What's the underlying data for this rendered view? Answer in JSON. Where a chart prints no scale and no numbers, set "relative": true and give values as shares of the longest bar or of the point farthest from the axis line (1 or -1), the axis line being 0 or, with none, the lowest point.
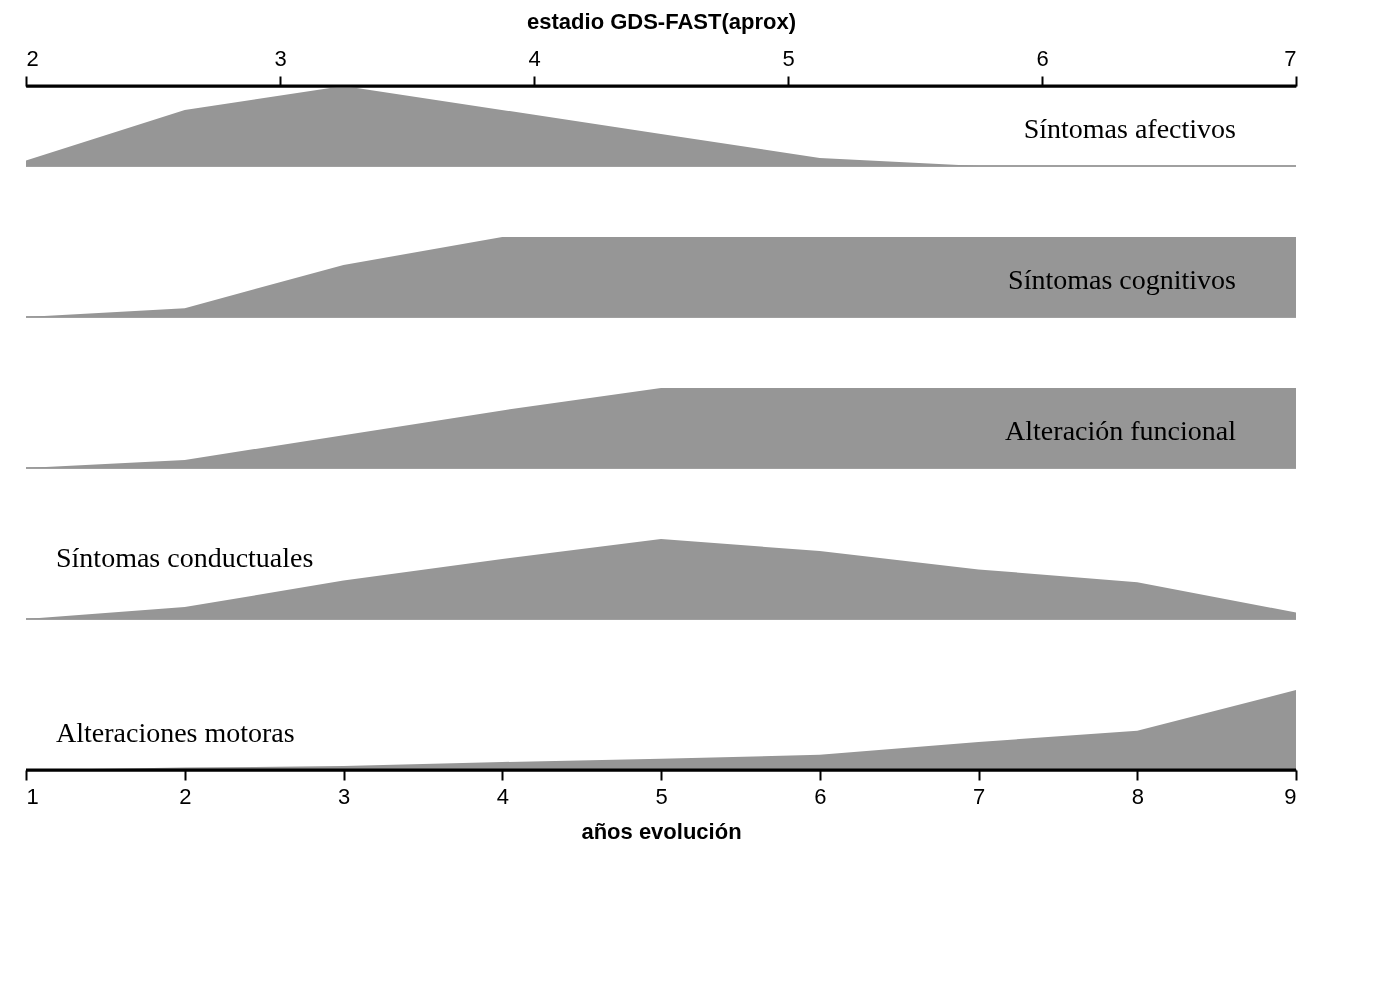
{
  "chart_data": [
    {
      "type": "area",
      "relative": true,
      "xlim": [
        1,
        9
      ],
      "x2lim": [
        2,
        7
      ],
      "x2ticks": [
        2,
        3,
        4,
        5,
        6,
        7
      ],
      "x2label": "estadio GDS-FAST(aprox)",
      "tick_labels": "x2",
      "x": [
        1,
        2,
        3,
        5,
        6,
        7,
        9
      ],
      "series": [
        {
          "name": "Síntomas afectivos",
          "color": "#969696",
          "values": [
            0.07,
            0.7,
            1,
            0.4,
            0.1,
            0,
            0
          ]
        }
      ]
    },
    {
      "type": "area",
      "relative": true,
      "xlim": [
        1,
        9
      ],
      "tick_labels": false,
      "x": [
        1,
        2,
        3,
        4,
        9
      ],
      "series": [
        {
          "name": "Síntomas cognitivos",
          "color": "#969696",
          "values": [
            0,
            0.11,
            0.65,
            1,
            1
          ]
        }
      ]
    },
    {
      "type": "area",
      "relative": true,
      "xlim": [
        1,
        9
      ],
      "tick_labels": false,
      "x": [
        1,
        2,
        3,
        4,
        5,
        9
      ],
      "series": [
        {
          "name": "Alteración funcional",
          "color": "#969696",
          "values": [
            0,
            0.1,
            0.41,
            0.72,
            1,
            1
          ]
        }
      ]
    },
    {
      "type": "area",
      "relative": true,
      "xlim": [
        1,
        9
      ],
      "tick_labels": false,
      "x": [
        1,
        2,
        3,
        4,
        5,
        6,
        7,
        8,
        9
      ],
      "series": [
        {
          "name": "Síntomas conductuales",
          "color": "#969696",
          "values": [
            0,
            0.15,
            0.48,
            0.75,
            1,
            0.85,
            0.62,
            0.46,
            0.08
          ]
        }
      ]
    },
    {
      "type": "area",
      "relative": true,
      "xlim": [
        1,
        9
      ],
      "xticks": [
        1,
        2,
        3,
        4,
        5,
        6,
        7,
        8,
        9
      ],
      "xlabel": "años evolución",
      "tick_labels": "x",
      "x": [
        1,
        2,
        3,
        4,
        5,
        6,
        7,
        8,
        9
      ],
      "series": [
        {
          "name": "Alteraciones motoras",
          "color": "#969696",
          "values": [
            0,
            0.03,
            0.05,
            0.1,
            0.14,
            0.19,
            0.35,
            0.49,
            1
          ]
        }
      ]
    }
  ]
}
